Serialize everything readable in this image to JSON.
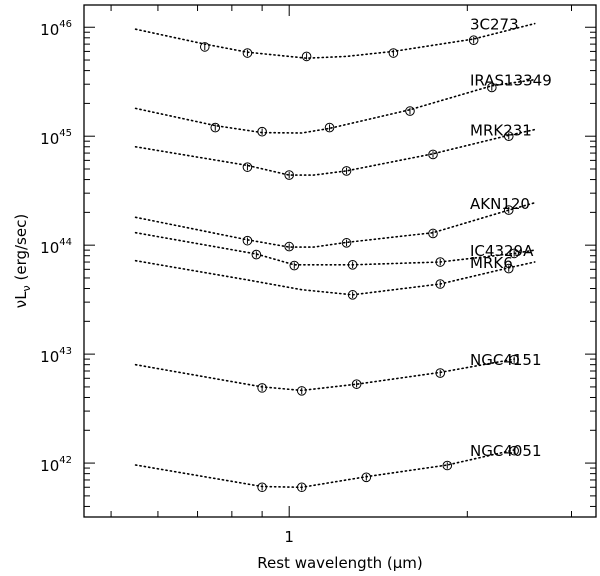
{
  "chart_data": {
    "type": "scatter",
    "xscale": "log",
    "yscale": "log",
    "xlabel_parts": [
      "Rest wavelength (",
      "μ",
      "m)"
    ],
    "ylabel": {
      "nu": "ν",
      "L": "L",
      "sub": "ν",
      "units": " (erg/sec)"
    },
    "xlim": [
      0.45,
      3.3
    ],
    "ylim": [
      3.2e+41,
      1.6e+46
    ],
    "x_tick_labels": [
      {
        "value": 1,
        "label": "1"
      }
    ],
    "y_tick_labels": [
      {
        "value": 1e+42,
        "base": "10",
        "exp": "42"
      },
      {
        "value": 1e+43,
        "base": "10",
        "exp": "43"
      },
      {
        "value": 1e+44,
        "base": "10",
        "exp": "44"
      },
      {
        "value": 1e+45,
        "base": "10",
        "exp": "45"
      },
      {
        "value": 1e+46,
        "base": "10",
        "exp": "46"
      }
    ],
    "series": [
      {
        "name": "3C273",
        "points": [
          [
            0.72,
            6.6e+45
          ],
          [
            0.85,
            5.8e+45
          ],
          [
            1.07,
            5.4e+45
          ],
          [
            1.5,
            5.8e+45
          ],
          [
            2.05,
            7.6e+45
          ]
        ],
        "curve": [
          [
            0.55,
            9.6e+45
          ],
          [
            0.72,
            7e+45
          ],
          [
            0.85,
            5.9e+45
          ],
          [
            1.07,
            5.2e+45
          ],
          [
            1.25,
            5.4e+45
          ],
          [
            1.5,
            6e+45
          ],
          [
            2.05,
            7.8e+45
          ],
          [
            2.6,
            1.08e+46
          ]
        ]
      },
      {
        "name": "IRAS13349",
        "points": [
          [
            0.75,
            1.2e+45
          ],
          [
            0.9,
            1.1e+45
          ],
          [
            1.17,
            1.2e+45
          ],
          [
            1.6,
            1.7e+45
          ],
          [
            2.2,
            2.8e+45
          ]
        ],
        "curve": [
          [
            0.55,
            1.8e+45
          ],
          [
            0.75,
            1.25e+45
          ],
          [
            0.9,
            1.08e+45
          ],
          [
            1.05,
            1.07e+45
          ],
          [
            1.17,
            1.18e+45
          ],
          [
            1.6,
            1.75e+45
          ],
          [
            2.2,
            2.9e+45
          ],
          [
            2.6,
            3.3e+45
          ]
        ]
      },
      {
        "name": "MRK231",
        "points": [
          [
            0.85,
            5.2e+44
          ],
          [
            1.0,
            4.4e+44
          ],
          [
            1.25,
            4.8e+44
          ],
          [
            1.75,
            6.8e+44
          ],
          [
            2.35,
            1e+45
          ]
        ],
        "curve": [
          [
            0.55,
            8e+44
          ],
          [
            0.85,
            5.4e+44
          ],
          [
            1.0,
            4.4e+44
          ],
          [
            1.1,
            4.4e+44
          ],
          [
            1.25,
            4.8e+44
          ],
          [
            1.75,
            6.9e+44
          ],
          [
            2.35,
            1.02e+45
          ],
          [
            2.6,
            1.15e+45
          ]
        ]
      },
      {
        "name": "AKN120",
        "points": [
          [
            0.85,
            1.1e+44
          ],
          [
            1.0,
            9.7e+43
          ],
          [
            1.25,
            1.05e+44
          ],
          [
            1.75,
            1.28e+44
          ],
          [
            2.35,
            2.1e+44
          ]
        ],
        "curve": [
          [
            0.55,
            1.8e+44
          ],
          [
            0.85,
            1.12e+44
          ],
          [
            1.0,
            9.6e+43
          ],
          [
            1.1,
            9.6e+43
          ],
          [
            1.25,
            1.06e+44
          ],
          [
            1.75,
            1.3e+44
          ],
          [
            2.35,
            2.1e+44
          ],
          [
            2.6,
            2.45e+44
          ]
        ]
      },
      {
        "name": "IC4329A",
        "points": [
          [
            0.88,
            8.2e+43
          ],
          [
            1.02,
            6.5e+43
          ],
          [
            1.28,
            6.6e+43
          ],
          [
            1.8,
            7e+43
          ],
          [
            2.4,
            8.4e+43
          ]
        ],
        "curve": [
          [
            0.55,
            1.3e+44
          ],
          [
            0.88,
            8.3e+43
          ],
          [
            1.02,
            6.6e+43
          ],
          [
            1.28,
            6.6e+43
          ],
          [
            1.8,
            7e+43
          ],
          [
            2.4,
            8.4e+43
          ],
          [
            2.6,
            9e+43
          ]
        ]
      },
      {
        "name": "MRK6",
        "points": [
          [
            1.28,
            3.5e+43
          ],
          [
            1.8,
            4.4e+43
          ],
          [
            2.35,
            6.1e+43
          ]
        ],
        "curve": [
          [
            0.55,
            7.2e+43
          ],
          [
            0.85,
            4.8e+43
          ],
          [
            1.05,
            3.9e+43
          ],
          [
            1.28,
            3.5e+43
          ],
          [
            1.8,
            4.4e+43
          ],
          [
            2.35,
            6.2e+43
          ],
          [
            2.6,
            7e+43
          ]
        ]
      },
      {
        "name": "NGC4151",
        "points": [
          [
            0.9,
            4.9e+42
          ],
          [
            1.05,
            4.6e+42
          ],
          [
            1.3,
            5.3e+42
          ],
          [
            1.8,
            6.7e+42
          ],
          [
            2.4,
            8.9e+42
          ]
        ],
        "curve": [
          [
            0.55,
            8e+42
          ],
          [
            0.9,
            5e+42
          ],
          [
            1.05,
            4.65e+42
          ],
          [
            1.3,
            5.3e+42
          ],
          [
            1.8,
            6.8e+42
          ],
          [
            2.4,
            9e+42
          ]
        ]
      },
      {
        "name": "NGC4051",
        "points": [
          [
            0.9,
            6e+41
          ],
          [
            1.05,
            6e+41
          ],
          [
            1.35,
            7.4e+41
          ],
          [
            1.85,
            9.5e+41
          ],
          [
            2.4,
            1.3e+42
          ]
        ],
        "curve": [
          [
            0.55,
            9.6e+41
          ],
          [
            0.9,
            6.1e+41
          ],
          [
            1.05,
            6e+41
          ],
          [
            1.35,
            7.5e+41
          ],
          [
            1.85,
            9.6e+41
          ],
          [
            2.4,
            1.32e+42
          ]
        ]
      }
    ]
  }
}
